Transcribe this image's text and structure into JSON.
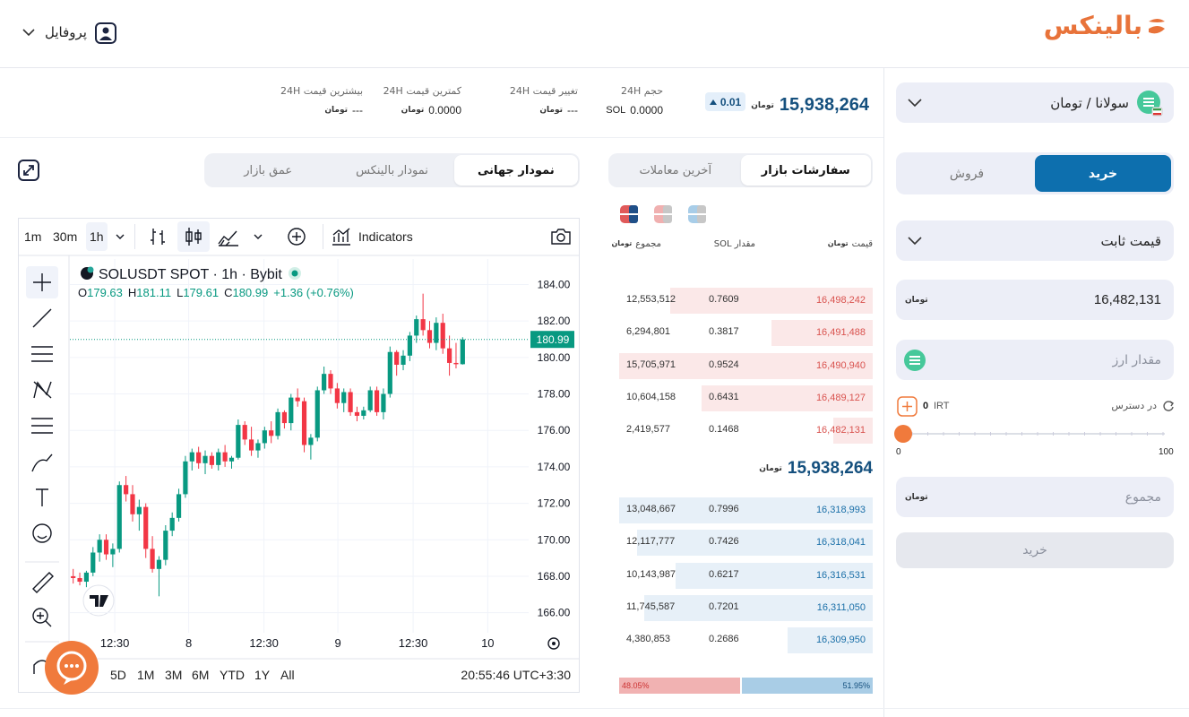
{
  "header": {
    "logo": "بالینکس",
    "profile": "پروفایل"
  },
  "ticker": {
    "price": "15,938,264",
    "currency": "تومان",
    "change": "0.01",
    "stats": [
      {
        "label": "حجم 24H",
        "value": "0.0000",
        "unit": "SOL"
      },
      {
        "label": "تغییر قیمت 24H",
        "value": "---"
      },
      {
        "label": "کمترین قیمت 24H",
        "value": "0.0000"
      },
      {
        "label": "بیشترین قیمت 24H",
        "value": "---"
      }
    ]
  },
  "chart_tabs": [
    "نمودار جهانی",
    "نمودار بالینکس",
    "عمق بازار"
  ],
  "chart_data": {
    "type": "candlestick",
    "symbol": "SOLUSDT SPOT · 1h · Bybit",
    "ohlc_labels": [
      "O",
      "H",
      "L",
      "C"
    ],
    "change_label": "+1.36 (+0.76%)",
    "intervals": [
      "1m",
      "30m",
      "1h"
    ],
    "indicators": "Indicators",
    "open": [
      168.0,
      167.9,
      167.7,
      168.2,
      169.3,
      170.0,
      169.2,
      169.5,
      173.0,
      172.5,
      171.4,
      171.8,
      169.5,
      168.4,
      168.9,
      170.5,
      171.2,
      172.5,
      174.3,
      174.8,
      174.2,
      174.6,
      174.1,
      174.8,
      174.3,
      174.5,
      176.3,
      175.5,
      174.9,
      175.3,
      176.0,
      175.7,
      177.0,
      176.4,
      177.8,
      177.6,
      175.2,
      175.6,
      178.2,
      179.1,
      178.3,
      177.5,
      178.1,
      177.0,
      176.8,
      177.1,
      178.2,
      177.0,
      178.0,
      180.3,
      179.6,
      180.1,
      181.2,
      182.1,
      181.5,
      180.8,
      181.9,
      180.5,
      179.7,
      179.63
    ],
    "high": [
      168.4,
      168.2,
      168.3,
      169.6,
      170.3,
      170.3,
      169.8,
      173.2,
      173.5,
      173.0,
      172.2,
      172.0,
      170.2,
      169.1,
      170.8,
      171.5,
      172.8,
      174.6,
      175.0,
      175.1,
      174.9,
      174.8,
      175.0,
      175.2,
      174.6,
      176.6,
      176.5,
      176.2,
      175.5,
      176.2,
      176.5,
      177.2,
      177.1,
      178.0,
      178.3,
      177.8,
      175.8,
      178.4,
      179.5,
      179.3,
      178.6,
      178.3,
      178.3,
      177.3,
      177.3,
      178.4,
      178.4,
      178.3,
      180.6,
      180.4,
      180.4,
      181.4,
      182.3,
      183.5,
      182.0,
      182.2,
      182.4,
      181.2,
      180.8,
      181.11
    ],
    "low": [
      167.6,
      167.5,
      167.4,
      168.0,
      168.8,
      168.9,
      168.5,
      169.3,
      172.1,
      171.0,
      170.5,
      169.0,
      168.2,
      166.9,
      168.6,
      170.2,
      171.0,
      172.3,
      173.8,
      173.9,
      173.6,
      173.9,
      173.8,
      174.0,
      173.9,
      174.4,
      175.2,
      174.6,
      174.5,
      175.0,
      175.3,
      175.5,
      176.1,
      176.0,
      177.3,
      174.8,
      174.4,
      175.4,
      178.0,
      178.0,
      177.2,
      177.0,
      176.8,
      176.5,
      176.6,
      177.0,
      176.8,
      176.6,
      177.8,
      179.0,
      179.3,
      179.8,
      180.8,
      181.2,
      180.5,
      180.4,
      180.2,
      179.0,
      179.4,
      179.61
    ],
    "close": [
      167.9,
      167.7,
      168.2,
      169.3,
      170.0,
      169.2,
      169.5,
      173.0,
      172.5,
      171.4,
      171.8,
      169.5,
      168.4,
      168.9,
      170.5,
      171.2,
      172.5,
      174.3,
      174.8,
      174.2,
      174.6,
      174.1,
      174.8,
      174.3,
      174.5,
      176.3,
      175.5,
      174.9,
      175.3,
      176.0,
      175.7,
      177.0,
      176.4,
      177.8,
      177.6,
      175.2,
      175.6,
      178.2,
      179.1,
      178.3,
      177.5,
      178.1,
      177.0,
      176.8,
      177.1,
      178.2,
      177.0,
      178.0,
      180.3,
      179.6,
      180.1,
      181.2,
      182.1,
      181.5,
      180.8,
      181.9,
      180.5,
      179.7,
      179.63,
      180.99
    ],
    "xlim": [
      -0.5,
      69
    ],
    "xticks": [
      {
        "value": 6.3,
        "label": "12:30"
      },
      {
        "value": 17.5,
        "label": "8"
      },
      {
        "value": 28.9,
        "label": "12:30"
      },
      {
        "value": 40.1,
        "label": "9"
      },
      {
        "value": 51.5,
        "label": "12:30"
      },
      {
        "value": 62.8,
        "label": "10"
      }
    ],
    "ylim": [
      164.9,
      185.4
    ],
    "yticks": [
      {
        "value": 184,
        "label": "184.00"
      },
      {
        "value": 182,
        "label": "182.00"
      },
      {
        "value": 180,
        "label": "180.00"
      },
      {
        "value": 178,
        "label": "178.00"
      },
      {
        "value": 176,
        "label": "176.00"
      },
      {
        "value": 174,
        "label": "174.00"
      },
      {
        "value": 172,
        "label": "172.00"
      },
      {
        "value": 170,
        "label": "170.00"
      },
      {
        "value": 168,
        "label": "168.00"
      },
      {
        "value": 166,
        "label": "166.00"
      }
    ],
    "colors": {
      "up": "#089981",
      "down": "#f23645"
    },
    "grid": true,
    "ranges": [
      "5D",
      "1M",
      "3M",
      "6M",
      "YTD",
      "1Y",
      "All"
    ],
    "clock": "20:55:46 UTC+3:30"
  },
  "orderbook": {
    "tabs": [
      "سفارشات بازار",
      "آخرین معاملات"
    ],
    "columns": [
      "قیمت",
      "مقدار SOL",
      "مجموع"
    ],
    "asks": [
      [
        "16,498,242",
        "0.7609",
        "12,553,512"
      ],
      [
        "16,491,488",
        "0.3817",
        "6,294,801"
      ],
      [
        "16,490,940",
        "0.9524",
        "15,705,971"
      ],
      [
        "16,489,127",
        "0.6431",
        "10,604,158"
      ],
      [
        "16,482,131",
        "0.1468",
        "2,419,577"
      ]
    ],
    "last_price": "15,938,264",
    "bids": [
      [
        "16,318,993",
        "0.7996",
        "13,048,667"
      ],
      [
        "16,318,041",
        "0.7426",
        "12,117,777"
      ],
      [
        "16,316,531",
        "0.6217",
        "10,143,987"
      ],
      [
        "16,311,050",
        "0.7201",
        "11,745,587"
      ],
      [
        "16,309,950",
        "0.2686",
        "4,380,853"
      ]
    ],
    "ratio": [
      "48.05%",
      "51.95%"
    ]
  },
  "trade_form": {
    "pair": "سولانا / تومان",
    "sides": [
      "خرید",
      "فروش"
    ],
    "order_type": "قیمت ثابت",
    "price": "16,482,131",
    "amount_placeholder": "مقدار ارز",
    "available": "در دسترس",
    "balance": "0",
    "balance_unit": "IRT",
    "slider_min": "0",
    "slider_max": "100",
    "total_placeholder": "مجموع",
    "submit": "خرید"
  }
}
